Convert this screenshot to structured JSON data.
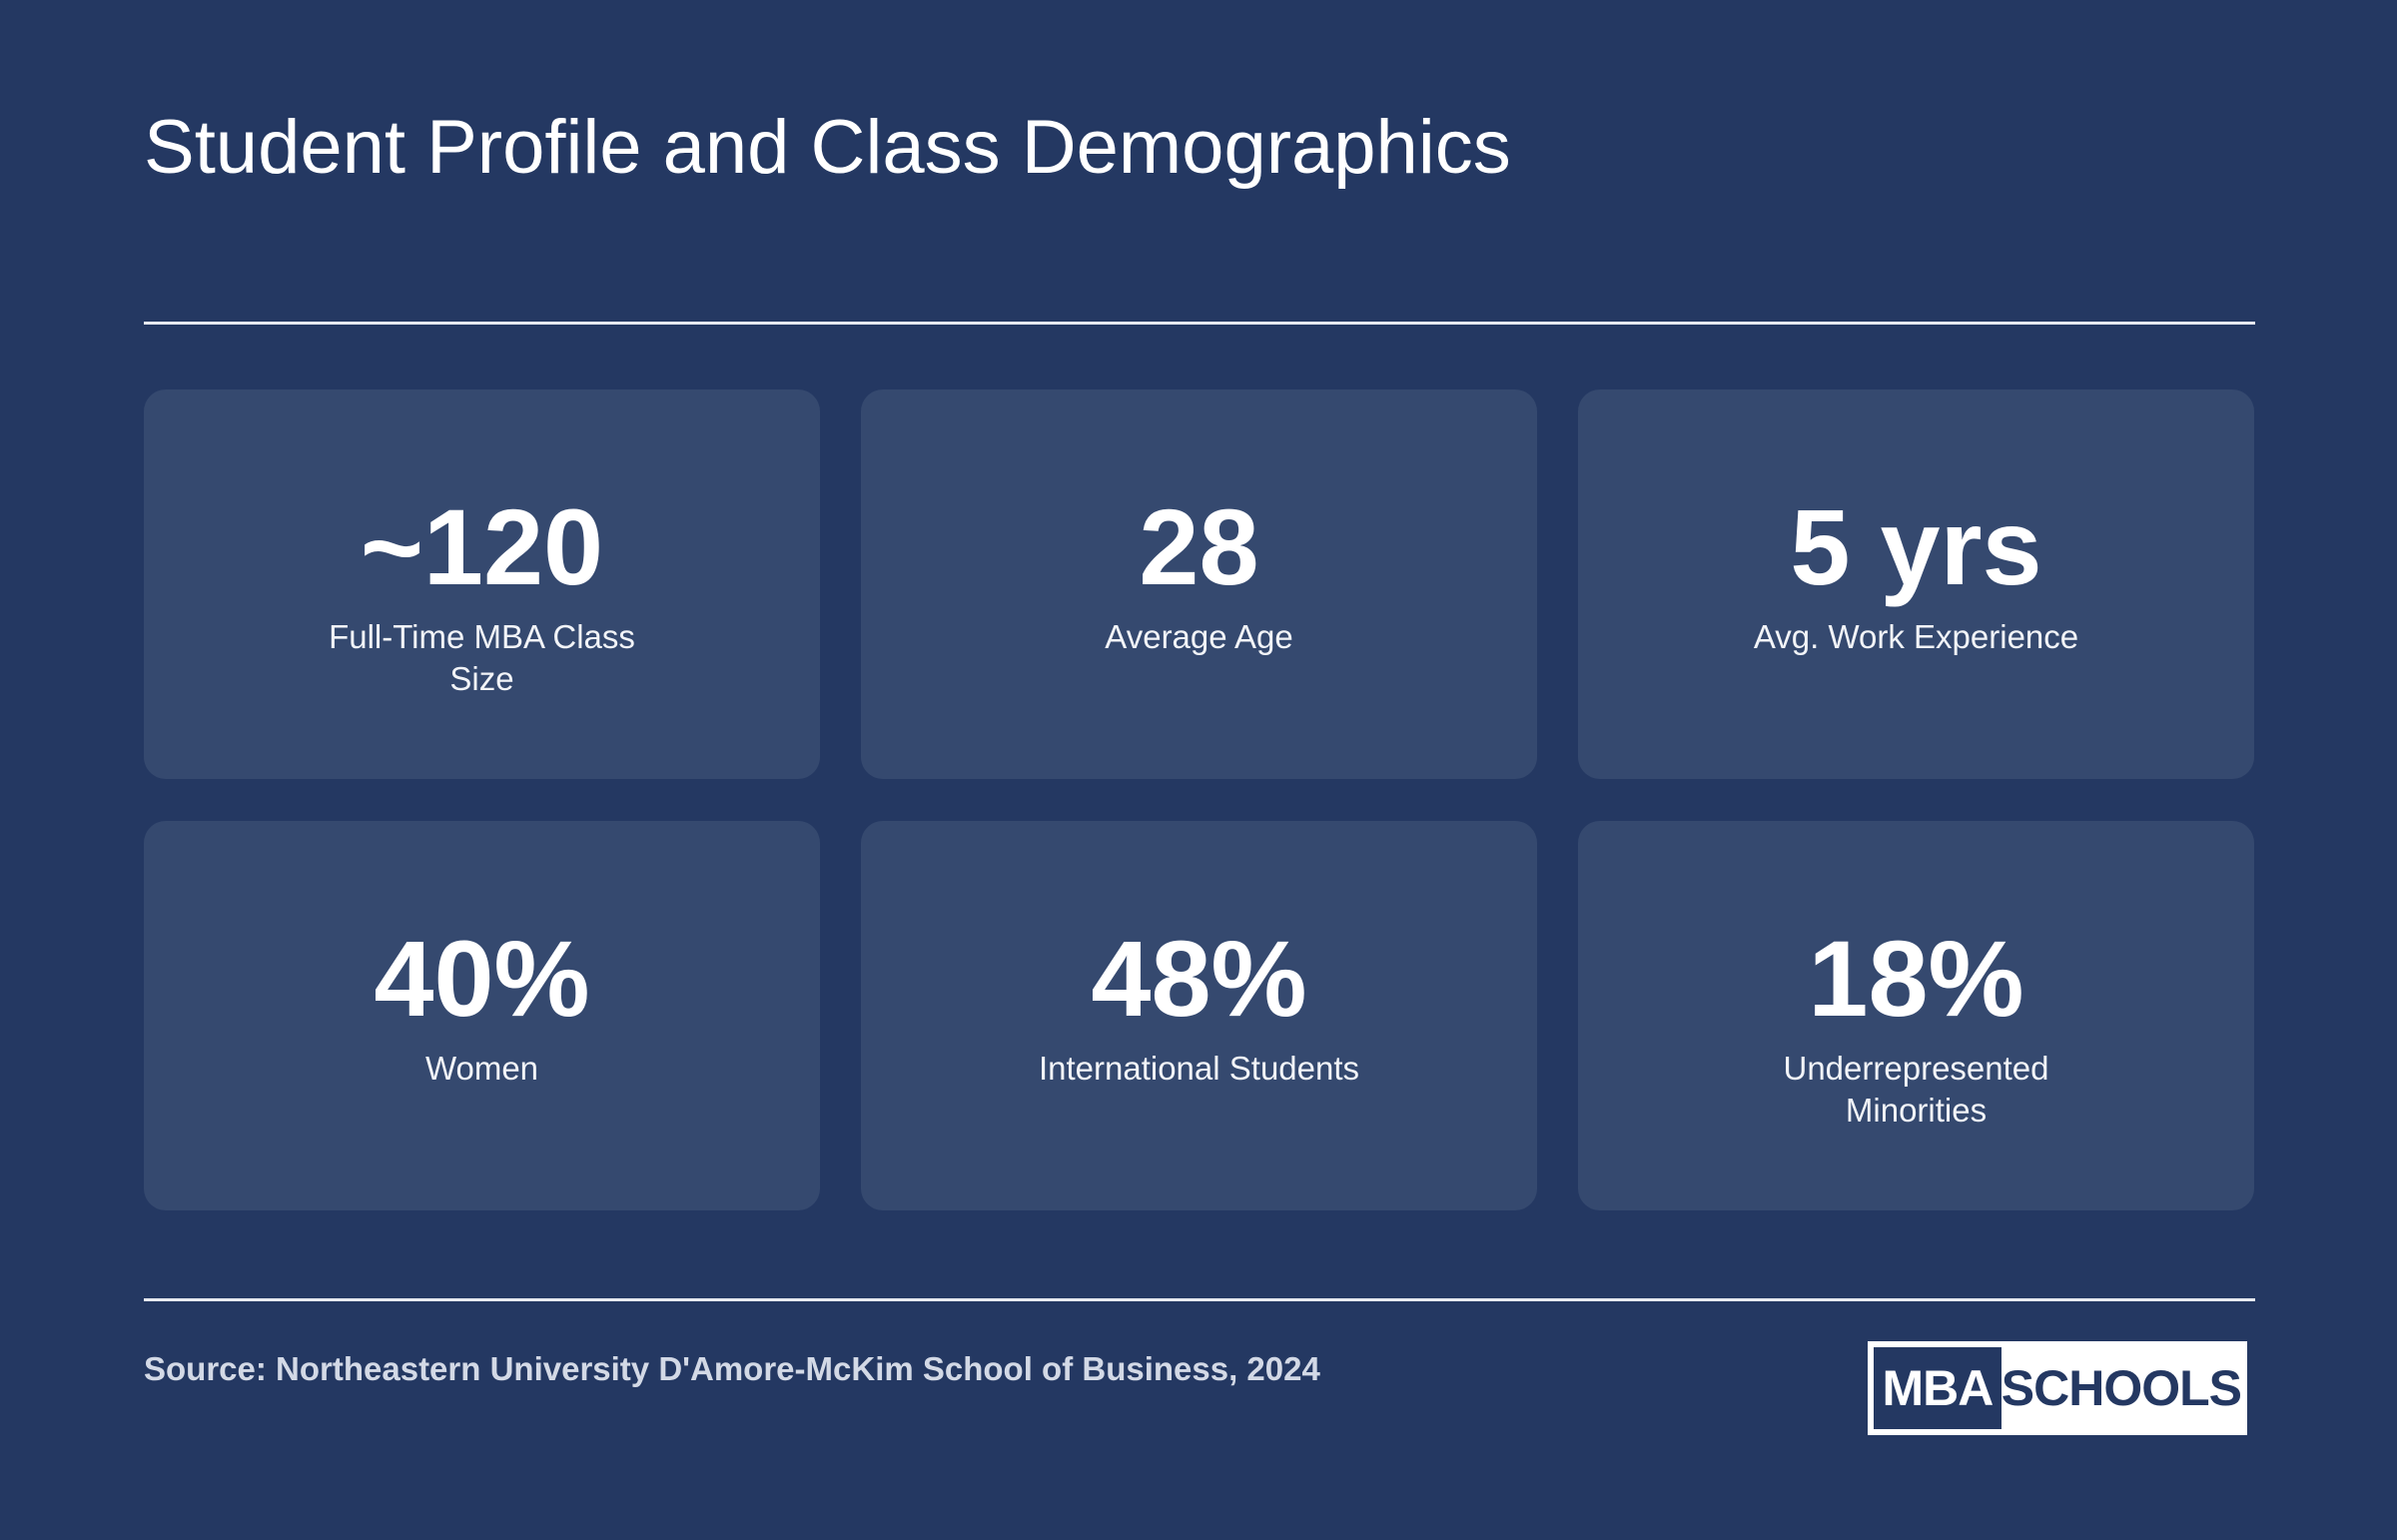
{
  "title": "Student Profile and Class Demographics",
  "stats": [
    {
      "value": "~120",
      "label": "Full-Time MBA Class Size"
    },
    {
      "value": "28",
      "label": "Average Age"
    },
    {
      "value": "5 yrs",
      "label": "Avg. Work Experience"
    },
    {
      "value": "40%",
      "label": "Women"
    },
    {
      "value": "48%",
      "label": "International Students"
    },
    {
      "value": "18%",
      "label": "Underrepresented Minorities"
    }
  ],
  "source": "Source: Northeastern University D'Amore-McKim School of Business, 2024",
  "logo": {
    "left_text": "MBA",
    "right_text": "SCHOOLS"
  },
  "colors": {
    "background": "#243862",
    "card": "#35496f",
    "text": "#ffffff"
  }
}
